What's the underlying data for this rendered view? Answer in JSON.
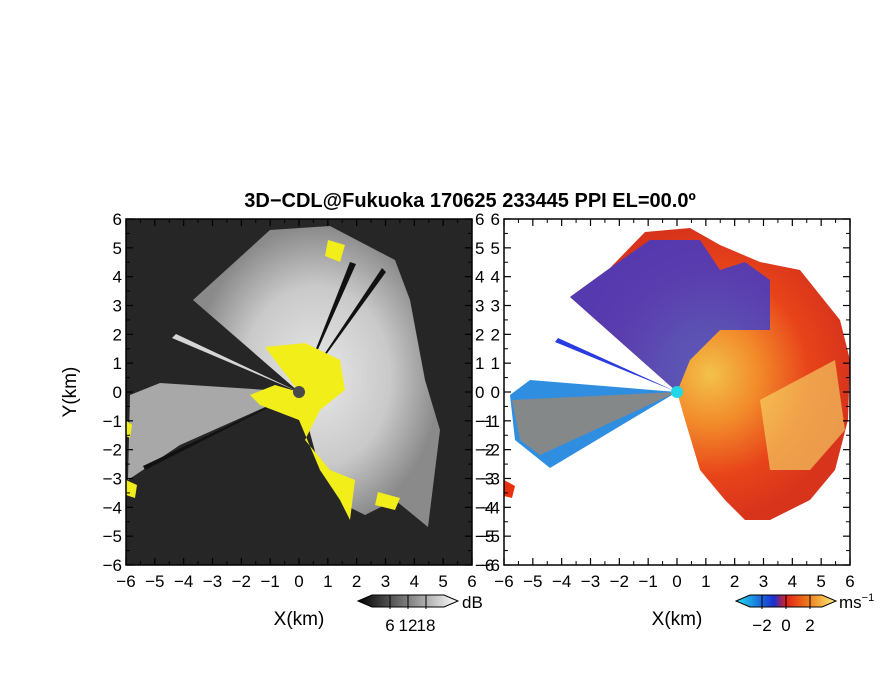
{
  "title": "3D−CDL@Fukuoka 170625 233445 PPI EL=00.0º",
  "chart_data": [
    {
      "type": "heatmap",
      "name": "reflectivity-ppi",
      "xlabel": "X(km)",
      "ylabel": "Y(km)",
      "xlim": [
        -6,
        6
      ],
      "ylim": [
        -6,
        6
      ],
      "xticks": [
        "−6",
        "−5",
        "−4",
        "−3",
        "−2",
        "−1",
        "0",
        "1",
        "2",
        "3",
        "4",
        "5",
        "6"
      ],
      "yticks": [
        "−6",
        "−5",
        "−4",
        "−3",
        "−2",
        "−1",
        "0",
        "1",
        "2",
        "3",
        "4",
        "5",
        "6"
      ],
      "colorbar": {
        "unit": "dB",
        "ticks": [
          "6",
          "12",
          "18"
        ],
        "range": [
          0,
          24
        ],
        "colormap": "grayscale"
      },
      "palette": {
        "background": "#262626",
        "saturated": "#f2ee1a",
        "center": "#4a4a4a"
      },
      "grid": false
    },
    {
      "type": "heatmap",
      "name": "doppler-velocity-ppi",
      "xlabel": "X(km)",
      "ylabel": "",
      "xlim": [
        -6,
        6
      ],
      "ylim": [
        -6,
        6
      ],
      "xticks": [
        "−6",
        "−5",
        "−4",
        "−3",
        "−2",
        "−1",
        "0",
        "1",
        "2",
        "3",
        "4",
        "5",
        "6"
      ],
      "yticks": [
        "−6",
        "−5",
        "−4",
        "−3",
        "−2",
        "−1",
        "0",
        "1",
        "2",
        "3",
        "4",
        "5",
        "6"
      ],
      "colorbar": {
        "unit": "ms",
        "unit_exp": "−1",
        "ticks": [
          "−2",
          "0",
          "2"
        ],
        "range": [
          -3,
          3
        ],
        "colormap": "blue-red-yellow"
      },
      "palette": {
        "negative": "#1a3fe6",
        "zero": "#e8300f",
        "positive": "#f7ee6a",
        "center": "#21d6e8"
      },
      "grid": false
    }
  ]
}
